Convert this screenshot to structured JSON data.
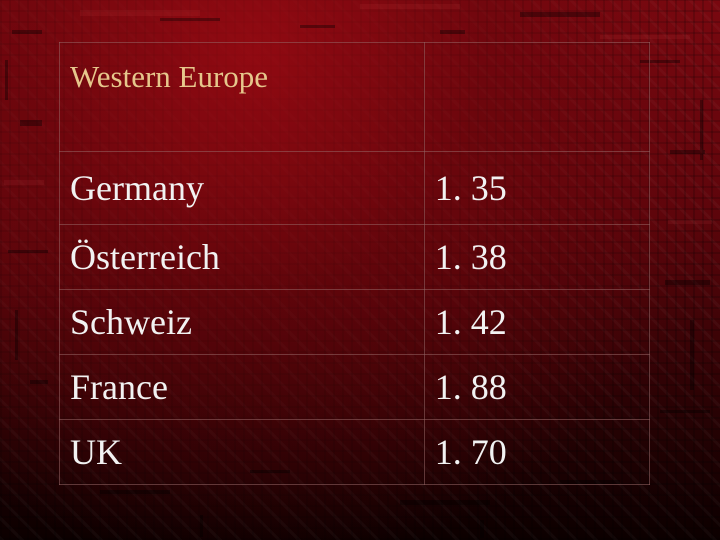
{
  "table": {
    "header": "Western Europe",
    "rows": [
      {
        "country": "Germany",
        "value": "1. 35"
      },
      {
        "country": "Österreich",
        "value": "1. 38"
      },
      {
        "country": "Schweiz",
        "value": "1. 42"
      },
      {
        "country": "France",
        "value": "1. 88"
      },
      {
        "country": "UK",
        "value": "1. 70"
      }
    ]
  },
  "colors": {
    "background": "#7a0810",
    "header_text": "#e6c78c",
    "body_text": "#f2f2f2"
  }
}
